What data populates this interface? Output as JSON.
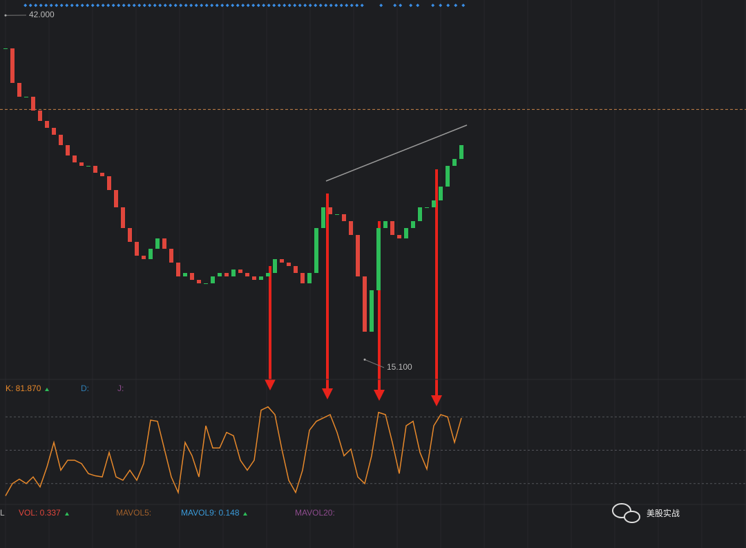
{
  "chart_data": [
    {
      "type": "candlestick",
      "values": [
        39.42,
        36.72,
        35.64,
        35.64,
        34.56,
        33.75,
        33.21,
        32.67,
        31.86,
        31.05,
        30.51,
        30.24,
        30.24,
        29.7,
        29.43,
        28.35,
        27.0,
        25.38,
        24.3,
        23.22,
        22.95,
        23.76,
        24.57,
        23.76,
        22.68,
        21.6,
        21.87,
        21.33,
        21.06,
        21.06,
        21.6,
        21.87,
        21.6,
        22.14,
        21.87,
        21.6,
        21.33,
        21.6,
        21.87,
        22.95,
        22.68,
        22.41,
        21.87,
        21.06,
        21.87,
        25.38,
        27.0,
        26.46,
        26.46,
        25.92,
        24.84,
        21.6,
        17.28,
        20.52,
        25.38,
        25.92,
        24.84,
        24.57,
        25.38,
        25.92,
        27.0,
        27.0,
        27.54,
        28.62,
        30.24,
        30.78,
        31.86
      ],
      "color_up": "#2ebd59",
      "color_down": "#e0463c",
      "ylim": [
        13.5,
        43.2
      ],
      "price_line": 34.65,
      "annotations": [
        {
          "value": 42,
          "label": "42.000"
        },
        {
          "value": 15.1,
          "label": "15.100"
        }
      ]
    },
    {
      "type": "line",
      "values": [
        9,
        20,
        24,
        20,
        26,
        17,
        35,
        57,
        32,
        41,
        41,
        38,
        29,
        27,
        26,
        48,
        26,
        23,
        32,
        23,
        38,
        77,
        76,
        51,
        26,
        12,
        57,
        45,
        26,
        72,
        52,
        52,
        66,
        63,
        41,
        32,
        41,
        86,
        89,
        82,
        51,
        23,
        12,
        32,
        68,
        76,
        79,
        82,
        66,
        45,
        51,
        26,
        20,
        45,
        84,
        82,
        57,
        29,
        72,
        76,
        48,
        33,
        72,
        82,
        80,
        57,
        79
      ],
      "color": "#e8892b",
      "ylim": [
        0,
        100
      ],
      "yticks": [
        20,
        50,
        80
      ],
      "grid": true,
      "legend": [
        "K: 81.870",
        "D:",
        "J:"
      ]
    }
  ],
  "volume_legend": [
    "L",
    "VOL: 0.337",
    "MAVOL5:",
    "MAVOL9: 0.148",
    "MAVOL20:"
  ],
  "watermark": "美股实战"
}
